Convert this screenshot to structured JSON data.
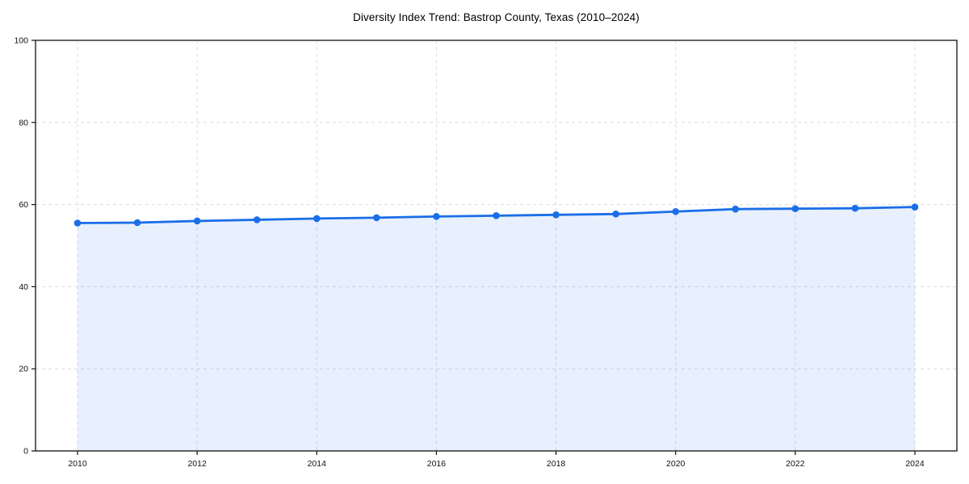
{
  "page": {
    "background": "#ffffff"
  },
  "chart_data": {
    "type": "area",
    "title": "Diversity Index Trend: Bastrop County, Texas (2010–2024)",
    "x": [
      2010,
      2011,
      2012,
      2013,
      2014,
      2015,
      2016,
      2017,
      2018,
      2019,
      2020,
      2021,
      2022,
      2023,
      2024
    ],
    "values": [
      55.5,
      55.6,
      56.0,
      56.3,
      56.6,
      56.8,
      57.1,
      57.3,
      57.5,
      57.7,
      58.3,
      58.9,
      59.0,
      59.1,
      59.4
    ],
    "xlabel": "",
    "ylabel": "",
    "ylim": [
      0,
      100
    ],
    "yticks": [
      0,
      20,
      40,
      60,
      80,
      100
    ],
    "xticks": [
      2010,
      2012,
      2014,
      2016,
      2018,
      2020,
      2022,
      2024
    ],
    "grid": true,
    "grid_style": "dashed",
    "legend": false,
    "line_color": "#1a6ee8",
    "marker_color": "#1a6ee8",
    "fill_color": "rgba(26,110,232,0.10)",
    "grid_color": "#dcdcdc",
    "axis_color": "#111111",
    "tick_label_color": "#111111"
  }
}
